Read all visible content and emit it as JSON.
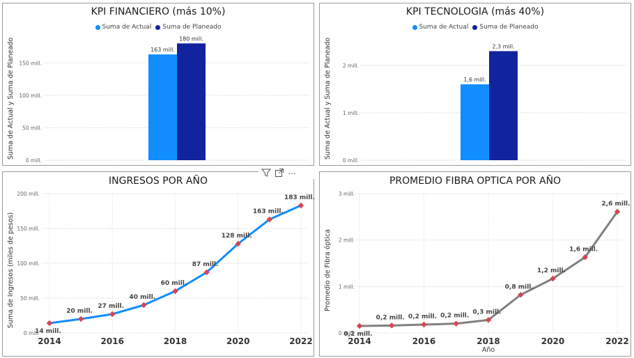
{
  "panels": {
    "financiero": {
      "title": "KPI FINANCIERO (más 10%)",
      "legend": [
        {
          "name": "Suma de Actual",
          "color": "#118DFF"
        },
        {
          "name": "Suma de Planeado",
          "color": "#12239E"
        }
      ],
      "ylabel": "Suma de Actual y Suma de Planeado",
      "yticks": [
        "0 mill.",
        "50 mill.",
        "100 mill.",
        "150 mill."
      ],
      "labels": [
        "163 mill.",
        "180 mill."
      ]
    },
    "tecnologia": {
      "title": "KPI TECNOLOGIA (más 40%)",
      "legend": [
        {
          "name": "Suma de Actual",
          "color": "#118DFF"
        },
        {
          "name": "Suma de Planeado",
          "color": "#12239E"
        }
      ],
      "ylabel": "Suma de Actual y Suma de Planeado",
      "yticks": [
        "0 mill.",
        "1 mill.",
        "2 mill."
      ],
      "labels": [
        "1,6 mill.",
        "2,3 mill."
      ]
    },
    "ingresos": {
      "title": "INGRESOS POR AÑO",
      "ylabel": "Suma de Ingresos (miles de pesos)",
      "yticks": [
        "0 mill.",
        "50 mill.",
        "100 mill.",
        "150 mill.",
        "200 mill."
      ],
      "xticks": [
        "2014",
        "2016",
        "2018",
        "2020",
        "2022"
      ],
      "labels": [
        "14 mill.",
        "20 mill.",
        "27 mill.",
        "40 mill.",
        "60 mill.",
        "87 mill.",
        "128 mill.",
        "163 mill.",
        "183 mill."
      ]
    },
    "fibra": {
      "title": "PROMEDIO FIBRA OPTICA POR AÑO",
      "ylabel": "Promedio de Fibra óptica",
      "xlabel": "Año",
      "yticks": [
        "0 mill.",
        "1 mill.",
        "2 mill.",
        "3 mill."
      ],
      "xticks": [
        "2014",
        "2016",
        "2018",
        "2020",
        "2022"
      ],
      "labels": [
        "0,2 mill.",
        "0,2 mill.",
        "0,2 mill.",
        "0,2 mill.",
        "0,3 mill.",
        "0,8 mill.",
        "1,2 mill.",
        "1,6 mill.",
        "2,6 mill."
      ]
    }
  },
  "toolbar": {
    "filter_icon": "filter-icon",
    "focus_icon": "focus-mode-icon",
    "more_icon": "more-options-icon",
    "more_glyph": "⋯"
  },
  "chart_data": [
    {
      "type": "bar",
      "title": "KPI FINANCIERO (más 10%)",
      "ylabel": "Suma de Actual y Suma de Planeado",
      "ylim": [
        0,
        190
      ],
      "grid": true,
      "legend": "top-center",
      "series": [
        {
          "name": "Suma de Actual",
          "values": [
            163
          ],
          "color": "#118DFF"
        },
        {
          "name": "Suma de Planeado",
          "values": [
            180
          ],
          "color": "#12239E"
        }
      ]
    },
    {
      "type": "bar",
      "title": "KPI TECNOLOGIA (más 40%)",
      "ylabel": "Suma de Actual y Suma de Planeado",
      "ylim": [
        0,
        2.6
      ],
      "grid": true,
      "legend": "top-center",
      "series": [
        {
          "name": "Suma de Actual",
          "values": [
            1.6
          ],
          "color": "#118DFF"
        },
        {
          "name": "Suma de Planeado",
          "values": [
            2.3
          ],
          "color": "#12239E"
        }
      ]
    },
    {
      "type": "line",
      "title": "INGRESOS POR AÑO",
      "ylabel": "Suma de Ingresos (miles de pesos)",
      "x": [
        2014,
        2015,
        2016,
        2017,
        2018,
        2019,
        2020,
        2021,
        2022
      ],
      "series": [
        {
          "values": [
            14,
            20,
            27,
            40,
            60,
            87,
            128,
            163,
            183
          ],
          "color": "#118DFF",
          "marker_color": "#D64550"
        }
      ],
      "ylim": [
        0,
        200
      ],
      "grid": true
    },
    {
      "type": "line",
      "title": "PROMEDIO FIBRA OPTICA POR AÑO",
      "ylabel": "Promedio de Fibra óptica",
      "xlabel": "Año",
      "x": [
        2014,
        2015,
        2016,
        2017,
        2018,
        2019,
        2020,
        2021,
        2022
      ],
      "series": [
        {
          "values": [
            0.15,
            0.16,
            0.18,
            0.2,
            0.28,
            0.82,
            1.17,
            1.63,
            2.61
          ],
          "color": "#808080",
          "marker_color": "#D64550"
        }
      ],
      "ylim": [
        0,
        3
      ],
      "grid": true
    }
  ]
}
